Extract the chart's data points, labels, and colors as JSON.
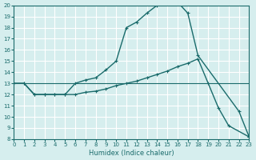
{
  "xlabel": "Humidex (Indice chaleur)",
  "xlim": [
    0,
    23
  ],
  "ylim": [
    8,
    20
  ],
  "xticks": [
    0,
    1,
    2,
    3,
    4,
    5,
    6,
    7,
    8,
    9,
    10,
    11,
    12,
    13,
    14,
    15,
    16,
    17,
    18,
    19,
    20,
    21,
    22,
    23
  ],
  "yticks": [
    8,
    9,
    10,
    11,
    12,
    13,
    14,
    15,
    16,
    17,
    18,
    19,
    20
  ],
  "bg_color": "#d6eeee",
  "line_color": "#1a6b6b",
  "grid_color": "#ffffff",
  "curve1_x": [
    0,
    1,
    2,
    3,
    4,
    5,
    6,
    7,
    8,
    9,
    10,
    11,
    12,
    13,
    14,
    15,
    16,
    17,
    18,
    22,
    23
  ],
  "curve1_y": [
    13,
    13,
    12,
    12,
    12,
    12,
    13,
    13.3,
    13.5,
    14.2,
    15,
    18,
    18.5,
    19.3,
    20,
    20.2,
    20.3,
    19.3,
    15.5,
    10.5,
    8.2
  ],
  "curve2_x": [
    0,
    1,
    2,
    3,
    4,
    5,
    6,
    7,
    8,
    9,
    10,
    11,
    12,
    13,
    14,
    15,
    16,
    17,
    18,
    19,
    20,
    21,
    23
  ],
  "curve2_y": [
    13,
    13,
    12,
    12,
    12,
    12,
    12,
    12.2,
    12.3,
    12.5,
    12.8,
    13,
    13.2,
    13.5,
    13.8,
    14.1,
    14.5,
    14.8,
    15.2,
    13,
    10.8,
    9.2,
    8.2
  ],
  "curve3_x": [
    0,
    23
  ],
  "curve3_y": [
    13,
    13
  ]
}
